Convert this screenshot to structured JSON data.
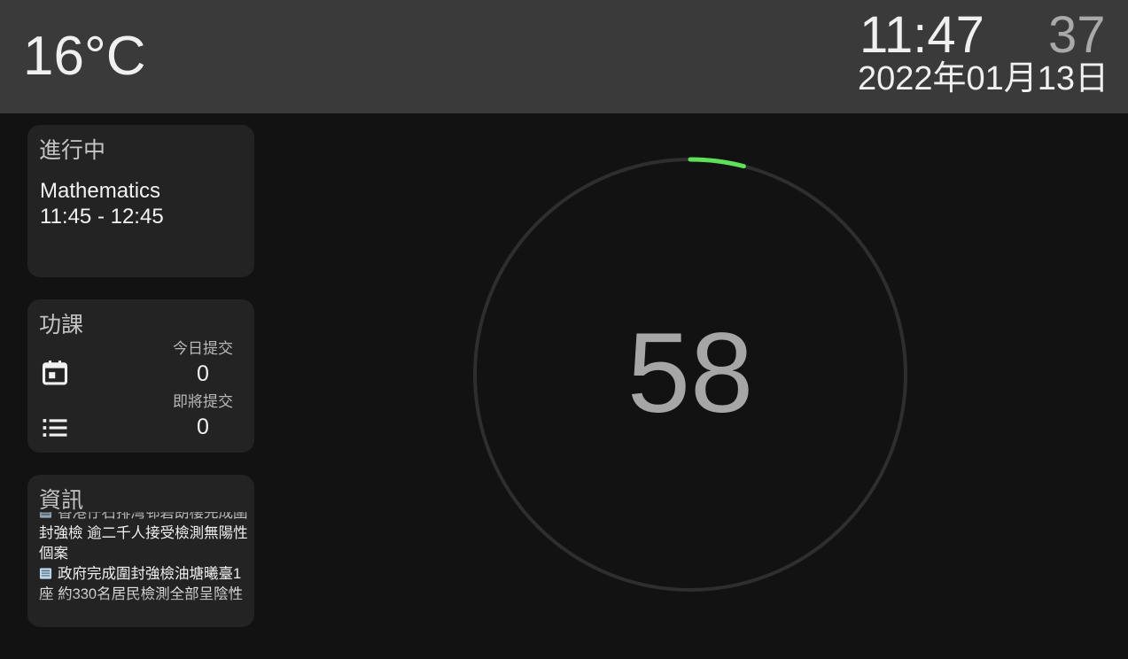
{
  "header": {
    "temperature": "16°C",
    "time": "11:47",
    "seconds": "37",
    "date": "2022年01月13日"
  },
  "ongoing": {
    "title": "進行中",
    "subject": "Mathematics",
    "time_range": "11:45 - 12:45"
  },
  "homework": {
    "title": "功課",
    "today_label": "今日提交",
    "today_count": "0",
    "upcoming_label": "即將提交",
    "upcoming_count": "0",
    "icons": [
      "calendar-icon",
      "list-icon"
    ]
  },
  "news": {
    "title": "資訊",
    "items": [
      "香港仔石排灣邨碧朗樓完成圍封強檢 逾二千人接受檢測無陽性個案",
      "政府完成圍封強檢油塘曦臺1座 約330名居民檢測全部呈陰性"
    ],
    "icon": "newspaper-icon"
  },
  "countdown": {
    "value": "58",
    "progress_fraction": 0.04,
    "progress_color": "#5ee058",
    "ring_color": "#2e2e2e"
  }
}
